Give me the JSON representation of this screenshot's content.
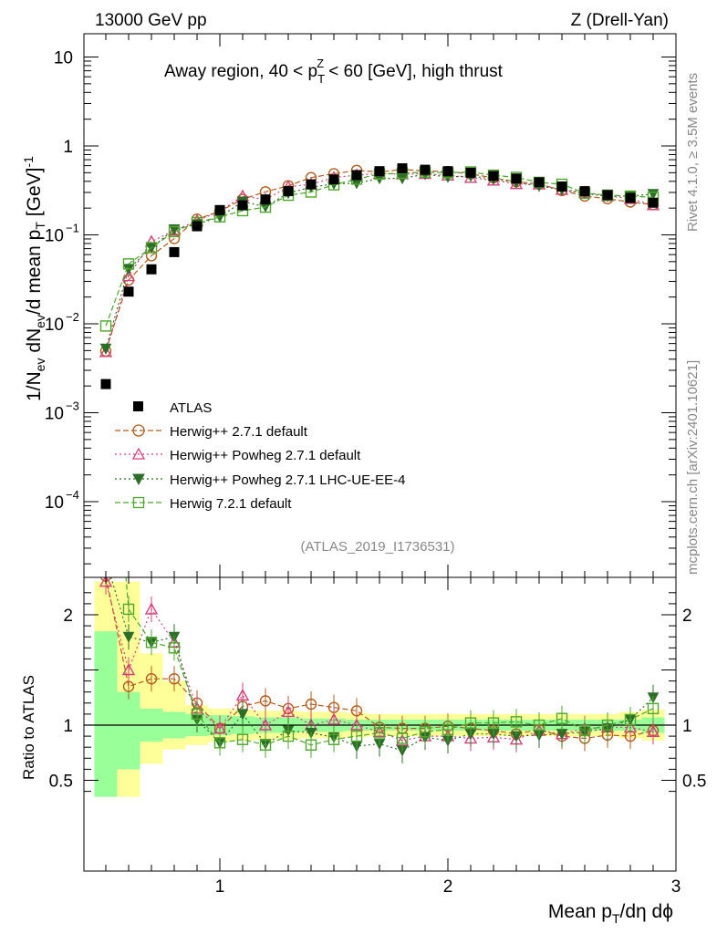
{
  "header": {
    "left": "13000 GeV pp",
    "right": "Z (Drell-Yan)"
  },
  "side_labels": {
    "rivet": "Rivet 4.1.0, ≥ 3.5M events",
    "mcplots": "mcplots.cern.ch [arXiv:2401.10621]"
  },
  "chart_data": {
    "type": "scatter",
    "title": "Away region, 40 < pT^Z < 60 [GeV], high thrust",
    "title_parts": {
      "a": "Away region, 40 < p",
      "sub": "T",
      "sup": "Z",
      "b": " < 60 [GeV], high thrust"
    },
    "watermark": "(ATLAS_2019_I1736531)",
    "ylabel": "1/N_ev dN_ev/d mean p_T [GeV]^-1",
    "ylabel_parts": {
      "a": "1/N",
      "s1": "ev",
      "b": " dN",
      "s2": "ev",
      "c": "/d mean p",
      "s3": "T",
      "d": " [GeV]",
      "e": "-1"
    },
    "xlabel": "Mean p_T/dη dϕ",
    "xlabel_parts": {
      "a": "Mean p",
      "sub": "T",
      "b": "/dη dϕ"
    },
    "ratio_ylabel": "Ratio to ATLAS",
    "xlim": [
      0.45,
      3.0
    ],
    "ylim": [
      2e-05,
      20
    ],
    "ratio_ylim": [
      0.35,
      2.3
    ],
    "yscale": "log",
    "x_ticks": [
      1,
      2,
      3
    ],
    "y_ticks": [
      {
        "value": 10,
        "base": "10",
        "exp": ""
      },
      {
        "value": 1,
        "base": "1",
        "exp": ""
      },
      {
        "value": 0.1,
        "base": "10",
        "exp": "−1"
      },
      {
        "value": 0.01,
        "base": "10",
        "exp": "−2"
      },
      {
        "value": 0.001,
        "base": "10",
        "exp": "−3"
      },
      {
        "value": 0.0001,
        "base": "10",
        "exp": "−4"
      }
    ],
    "ratio_ticks": [
      {
        "value": 2,
        "label": "2"
      },
      {
        "value": 1,
        "label": "1"
      },
      {
        "value": 0.5,
        "label": "0.5"
      }
    ],
    "x": [
      0.5,
      0.6,
      0.7,
      0.8,
      0.9,
      1.0,
      1.1,
      1.2,
      1.3,
      1.4,
      1.5,
      1.6,
      1.7,
      1.8,
      1.9,
      2.0,
      2.1,
      2.2,
      2.3,
      2.4,
      2.5,
      2.6,
      2.7,
      2.8,
      2.9
    ],
    "data": {
      "name": "ATLAS",
      "values": [
        0.0021,
        0.023,
        0.041,
        0.064,
        0.125,
        0.19,
        0.215,
        0.25,
        0.31,
        0.37,
        0.42,
        0.47,
        0.52,
        0.56,
        0.54,
        0.52,
        0.5,
        0.46,
        0.43,
        0.39,
        0.35,
        0.31,
        0.28,
        0.26,
        0.23
      ]
    },
    "band_edges": [
      0.45,
      0.55,
      0.65,
      0.75,
      0.85,
      0.95,
      1.05,
      1.15,
      1.25,
      1.35,
      1.45,
      1.55,
      1.65,
      1.75,
      1.85,
      1.95,
      2.05,
      2.15,
      2.25,
      2.35,
      2.45,
      2.55,
      2.65,
      2.75,
      2.85,
      2.95
    ],
    "band_stat": [
      [
        0.35,
        1.85
      ],
      [
        0.6,
        1.3
      ],
      [
        0.85,
        1.15
      ],
      [
        0.88,
        1.12
      ],
      [
        0.9,
        1.1
      ],
      [
        0.91,
        1.09
      ],
      [
        0.92,
        1.08
      ],
      [
        0.93,
        1.07
      ],
      [
        0.93,
        1.07
      ],
      [
        0.94,
        1.06
      ],
      [
        0.94,
        1.06
      ],
      [
        0.95,
        1.05
      ],
      [
        0.95,
        1.05
      ],
      [
        0.95,
        1.05
      ],
      [
        0.95,
        1.05
      ],
      [
        0.95,
        1.05
      ],
      [
        0.95,
        1.05
      ],
      [
        0.95,
        1.05
      ],
      [
        0.95,
        1.05
      ],
      [
        0.95,
        1.05
      ],
      [
        0.95,
        1.05
      ],
      [
        0.95,
        1.05
      ],
      [
        0.95,
        1.05
      ],
      [
        0.95,
        1.05
      ],
      [
        0.93,
        1.07
      ]
    ],
    "band_tot": [
      [
        0.35,
        2.3
      ],
      [
        0.35,
        2.3
      ],
      [
        0.65,
        1.65
      ],
      [
        0.78,
        1.4
      ],
      [
        0.82,
        1.18
      ],
      [
        0.85,
        1.15
      ],
      [
        0.86,
        1.14
      ],
      [
        0.87,
        1.13
      ],
      [
        0.87,
        1.13
      ],
      [
        0.88,
        1.12
      ],
      [
        0.88,
        1.12
      ],
      [
        0.89,
        1.11
      ],
      [
        0.9,
        1.1
      ],
      [
        0.9,
        1.1
      ],
      [
        0.9,
        1.1
      ],
      [
        0.9,
        1.1
      ],
      [
        0.9,
        1.1
      ],
      [
        0.9,
        1.1
      ],
      [
        0.9,
        1.1
      ],
      [
        0.9,
        1.1
      ],
      [
        0.9,
        1.1
      ],
      [
        0.9,
        1.1
      ],
      [
        0.9,
        1.1
      ],
      [
        0.88,
        1.12
      ],
      [
        0.86,
        1.14
      ]
    ],
    "series": [
      {
        "name": "Herwig++ 2.7.1 default",
        "color": "#b35c1e",
        "marker": "circle",
        "dash": "6,3",
        "ratio": [
          2.35,
          1.35,
          1.42,
          1.42,
          1.2,
          0.97,
          1.17,
          1.22,
          1.15,
          1.19,
          1.16,
          1.13,
          0.98,
          0.97,
          0.97,
          0.99,
          0.97,
          0.95,
          0.92,
          0.96,
          0.9,
          0.88,
          0.91,
          0.9,
          0.95
        ]
      },
      {
        "name": "Herwig++ Powheg 2.7.1 default",
        "color": "#d4407a",
        "marker": "triangle-up",
        "dash": "2,3",
        "ratio": [
          2.3,
          1.5,
          2.05,
          1.75,
          1.15,
          0.97,
          1.27,
          1.0,
          1.12,
          1.0,
          1.05,
          1.0,
          0.94,
          0.86,
          0.9,
          0.9,
          0.88,
          0.89,
          0.87,
          0.95,
          0.92,
          0.97,
          0.98,
          0.98,
          0.94
        ]
      },
      {
        "name": "Herwig++ Powheg 2.7.1 LHC-UE-EE-4",
        "color": "#2c6e28",
        "marker": "triangle-down",
        "dash": "2,3",
        "ratio": [
          2.5,
          1.8,
          1.75,
          1.8,
          1.05,
          0.84,
          1.1,
          0.83,
          0.95,
          0.93,
          0.89,
          0.81,
          0.83,
          0.77,
          0.89,
          0.86,
          0.92,
          0.92,
          0.9,
          0.91,
          0.92,
          0.94,
          0.97,
          1.05,
          1.25
        ]
      },
      {
        "name": "Herwig 7.2.1 default",
        "color": "#4ea62b",
        "marker": "square",
        "dash": "6,3",
        "ratio": [
          4.5,
          2.05,
          1.75,
          1.7,
          1.1,
          0.84,
          0.87,
          0.82,
          0.9,
          0.82,
          0.87,
          0.9,
          0.93,
          0.88,
          0.94,
          0.96,
          1.02,
          1.02,
          1.03,
          1.0,
          1.06,
          0.95,
          1.0,
          1.05,
          1.15
        ]
      }
    ]
  }
}
